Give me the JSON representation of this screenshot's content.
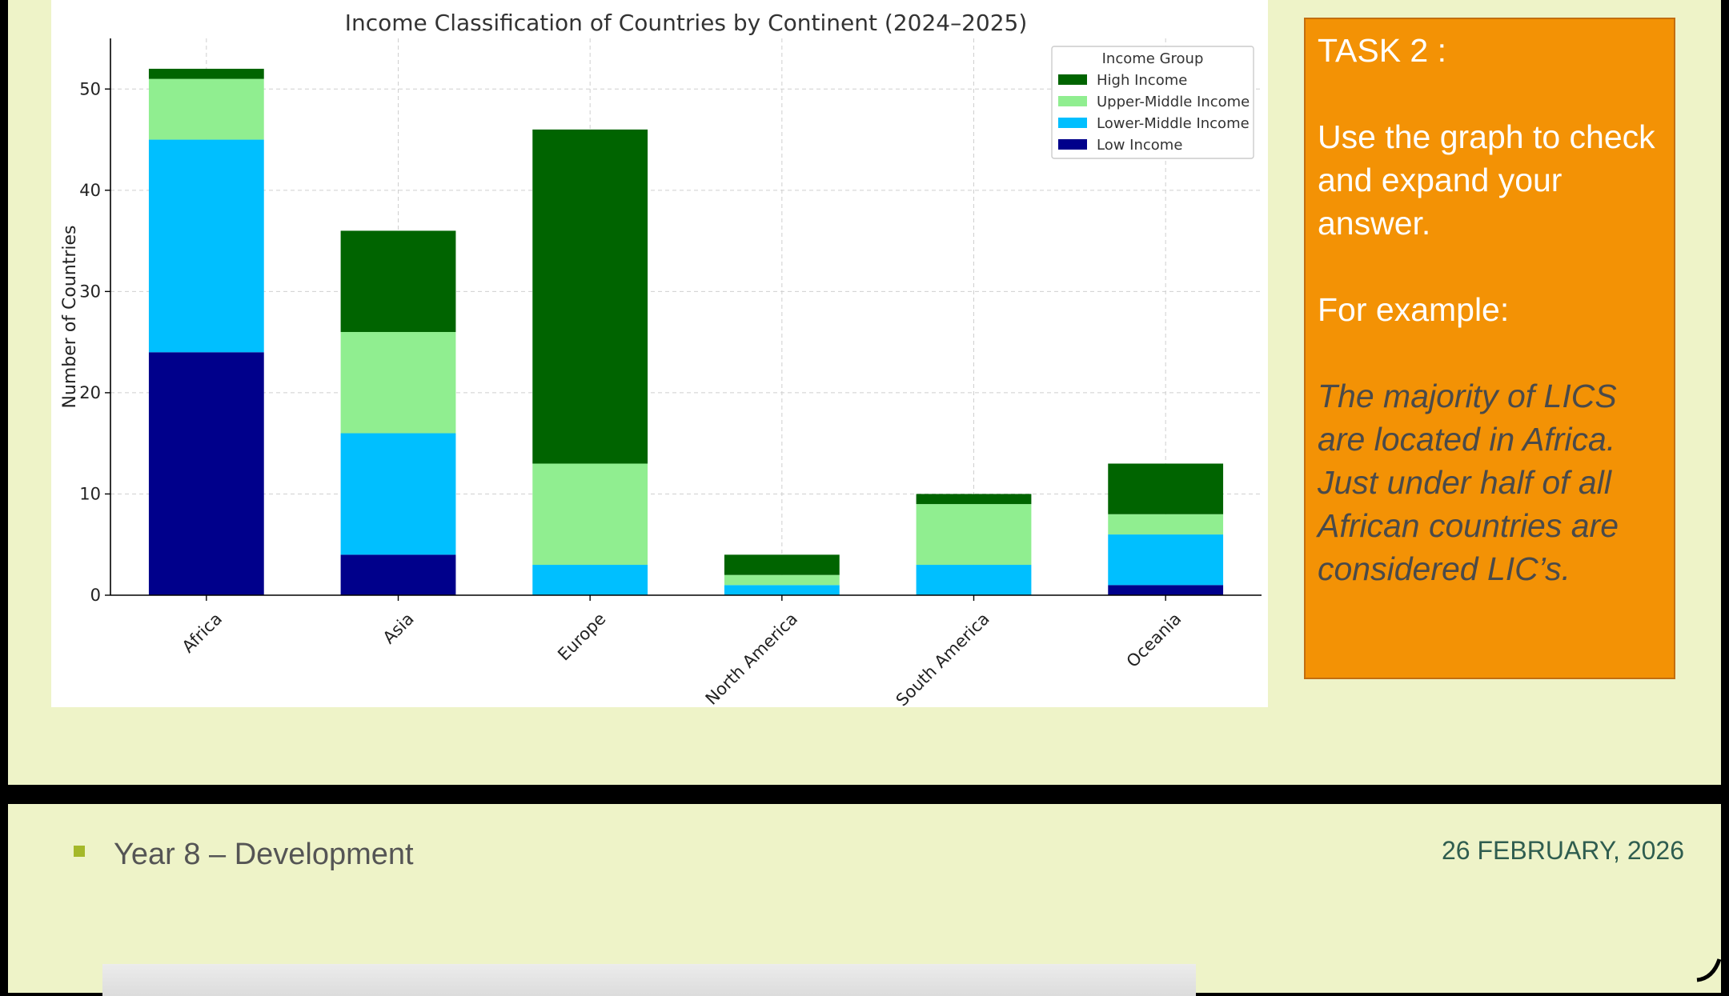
{
  "chart_data": {
    "type": "bar",
    "stacked": true,
    "title": "Income Classification of Countries by Continent (2024–2025)",
    "xlabel": "",
    "ylabel": "Number of Countries",
    "ylim": [
      0,
      55
    ],
    "yticks": [
      "0",
      "10",
      "20",
      "30",
      "40",
      "50"
    ],
    "grid": true,
    "legend": {
      "title": "Income Group",
      "placement": "top-right"
    },
    "categories": [
      "Africa",
      "Asia",
      "Europe",
      "North America",
      "South America",
      "Oceania"
    ],
    "series": [
      {
        "name": "Low Income",
        "color": "#00008b",
        "values": [
          24,
          4,
          0,
          0,
          0,
          1
        ]
      },
      {
        "name": "Lower-Middle Income",
        "color": "#00bfff",
        "values": [
          21,
          12,
          3,
          1,
          3,
          5
        ]
      },
      {
        "name": "Upper-Middle Income",
        "color": "#90ee90",
        "values": [
          6,
          10,
          10,
          1,
          6,
          2
        ]
      },
      {
        "name": "High Income",
        "color": "#006400",
        "values": [
          1,
          10,
          33,
          2,
          1,
          5
        ]
      }
    ]
  },
  "task": {
    "heading": "TASK 2 :",
    "instruction": "Use the graph to check and expand your answer.",
    "example_label": "For example:",
    "example_text": "The majority of LICS  are located in Africa. Just under half of all African countries are considered LIC’s."
  },
  "footer": {
    "title": "Year 8 – Development",
    "date": "26 FEBRUARY, 2026"
  }
}
